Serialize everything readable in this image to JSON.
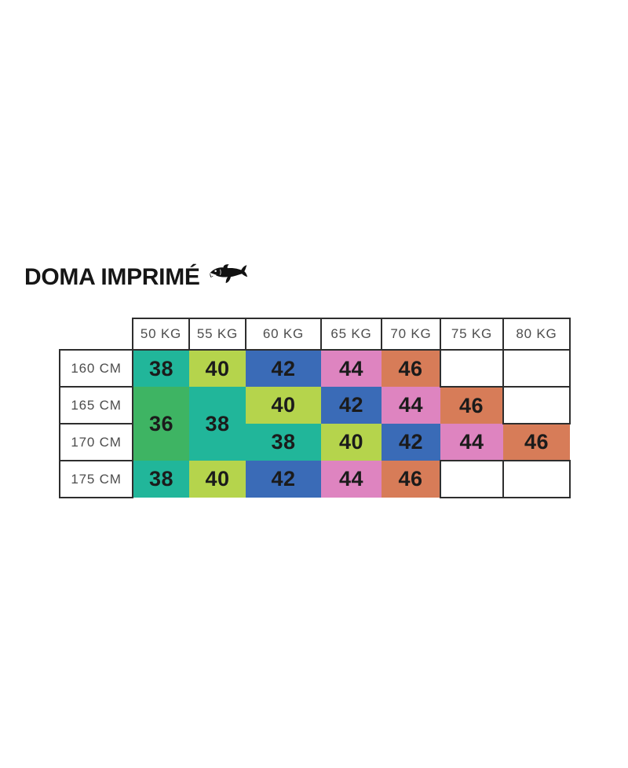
{
  "title": {
    "text": "DOMA IMPRIMÉ"
  },
  "icons": {
    "brand": "shark-icon"
  },
  "size_chart": {
    "corner_label": "",
    "weight_headers": [
      "50 KG",
      "55 KG",
      "60 KG",
      "65 KG",
      "70 KG",
      "75 KG",
      "80 KG"
    ],
    "height_rows": [
      {
        "label": "160 CM",
        "cells": [
          {
            "size": "38"
          },
          {
            "size": "40"
          },
          {
            "size": "42"
          },
          {
            "size": "44"
          },
          {
            "size": "46"
          },
          {
            "size": ""
          },
          {
            "size": ""
          }
        ]
      },
      {
        "label": "165 CM",
        "cells": [
          {
            "size": "36",
            "rowspan": 2
          },
          {
            "size": "38",
            "rowspan": 2
          },
          {
            "size": "40"
          },
          {
            "size": "42"
          },
          {
            "size": "44"
          },
          {
            "size": "46"
          },
          {
            "size": ""
          }
        ]
      },
      {
        "label": "170 CM",
        "cells": [
          {
            "size": "38"
          },
          {
            "size": "40"
          },
          {
            "size": "42"
          },
          {
            "size": "44"
          },
          {
            "size": "46"
          }
        ]
      },
      {
        "label": "175 CM",
        "cells": [
          {
            "size": "38"
          },
          {
            "size": "40"
          },
          {
            "size": "42"
          },
          {
            "size": "44"
          },
          {
            "size": "46"
          },
          {
            "size": ""
          },
          {
            "size": ""
          }
        ]
      }
    ],
    "size_colors": {
      "36": "#3eb463",
      "38": "#21b69a",
      "40": "#b5d44c",
      "42": "#3a6bb7",
      "44": "#de84c0",
      "46": "#d77c58"
    },
    "border_color": "#2e2e2e",
    "header_text_color": "#4d4d4d",
    "number_text_color": "#1b1b1b"
  },
  "chart_data": {
    "type": "table",
    "title": "DOMA IMPRIMÉ",
    "columns": [
      "50 KG",
      "55 KG",
      "60 KG",
      "65 KG",
      "70 KG",
      "75 KG",
      "80 KG"
    ],
    "row_labels": [
      "160 CM",
      "165 CM",
      "170 CM",
      "175 CM"
    ],
    "matrix": [
      [
        "38",
        "40",
        "42",
        "44",
        "46",
        "",
        ""
      ],
      [
        "36",
        "38",
        "40",
        "42",
        "44",
        "46",
        ""
      ],
      [
        "36",
        "38",
        "38",
        "40",
        "42",
        "44",
        "46"
      ],
      [
        "38",
        "40",
        "42",
        "44",
        "46",
        "",
        ""
      ]
    ],
    "merged_cells": [
      {
        "value": "36",
        "column": "50 KG",
        "rows": [
          "165 CM",
          "170 CM"
        ]
      },
      {
        "value": "38",
        "column": "55 KG",
        "rows": [
          "165 CM",
          "170 CM"
        ]
      }
    ],
    "cell_color_by_value": {
      "36": "#3eb463",
      "38": "#21b69a",
      "40": "#b5d44c",
      "42": "#3a6bb7",
      "44": "#de84c0",
      "46": "#d77c58"
    },
    "legend_position": "none",
    "grid": "black borders on white header/empty cells only; colored cells borderless"
  }
}
